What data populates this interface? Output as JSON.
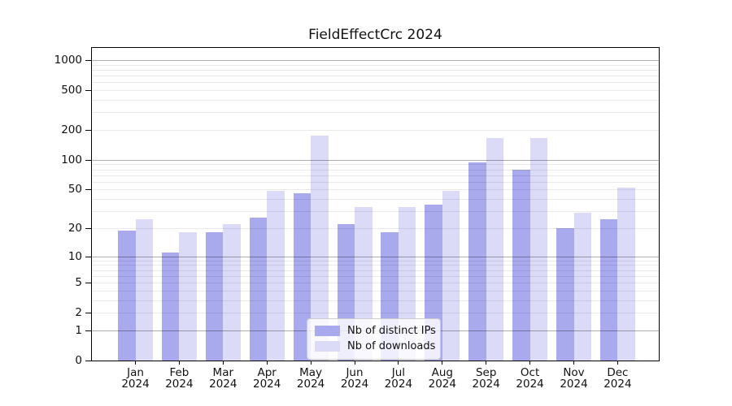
{
  "title": "FieldEffectCrc 2024",
  "colors": {
    "bar_distinct_ips": "#a9a9ee",
    "bar_downloads": "#dbdbf8",
    "grid_major": "#b3b3b3",
    "grid_minor": "#e8e8e8",
    "axis": "#000000",
    "legend_border": "#cccccc",
    "background": "#ffffff"
  },
  "chart_data": {
    "type": "bar",
    "title": "FieldEffectCrc 2024",
    "categories": [
      "Jan",
      "Feb",
      "Mar",
      "Apr",
      "May",
      "Jun",
      "Jul",
      "Aug",
      "Sep",
      "Oct",
      "Nov",
      "Dec"
    ],
    "x_year_line": "2024",
    "series": [
      {
        "name": "Nb of distinct IPs",
        "color": "#a9a9ee",
        "values": [
          19,
          11,
          18,
          26,
          46,
          22,
          18,
          35,
          95,
          80,
          20,
          25
        ]
      },
      {
        "name": "Nb of downloads",
        "color": "#dbdbf8",
        "values": [
          25,
          18,
          22,
          49,
          177,
          33,
          33,
          49,
          165,
          165,
          29,
          52
        ]
      }
    ],
    "xlabel": "",
    "ylabel": "",
    "y_scale": "log1p",
    "y_ticks": [
      1000,
      500,
      200,
      100,
      50,
      20,
      10,
      5,
      2,
      1,
      0
    ],
    "ylim": [
      0,
      1320
    ],
    "grid": true,
    "legend_position": "inside-bottom-center"
  }
}
